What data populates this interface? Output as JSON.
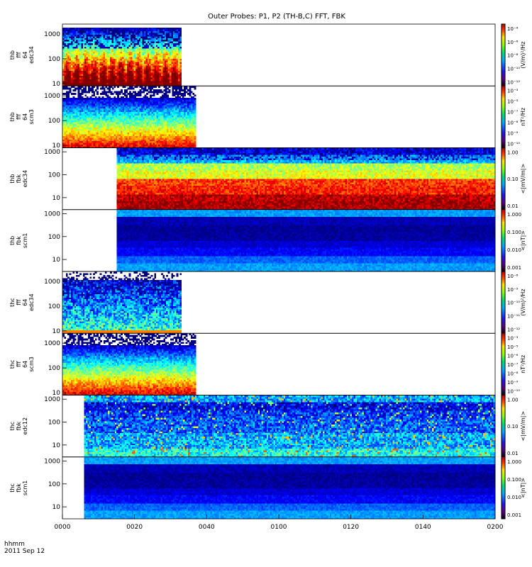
{
  "title": "Outer Probes: P1, P2 (TH-B,C) FFT, FBK",
  "time_axis": {
    "ticks": [
      "0000",
      "0020",
      "0040",
      "0100",
      "0120",
      "0140",
      "0200"
    ],
    "label_lines": [
      "hhmm",
      "2011 Sep 12"
    ]
  },
  "chart_data": [
    {
      "type": "heatmap",
      "panel_label": [
        "thb",
        "fff",
        "64",
        "edc34"
      ],
      "y_ticks": [
        "10",
        "100",
        "1000"
      ],
      "y_scale": "log",
      "y_range": [
        8,
        2500
      ],
      "colorbar": {
        "label": "(V/m)²/Hz",
        "ticks": [
          "10⁻⁴",
          "10⁻⁶",
          "10⁻⁸",
          "10⁻¹⁰",
          "10⁻¹²"
        ]
      },
      "data_extent_hhmm": [
        "0000",
        "0033"
      ],
      "style": "fff_e"
    },
    {
      "type": "heatmap",
      "panel_label": [
        "thb",
        "fff",
        "64",
        "scm3"
      ],
      "y_ticks": [
        "10",
        "100",
        "1000"
      ],
      "y_scale": "log",
      "y_range": [
        8,
        2500
      ],
      "colorbar": {
        "label": "nT²/Hz",
        "ticks": [
          "10⁻³",
          "10⁻⁵",
          "10⁻⁷",
          "10⁻⁸",
          "10⁻⁹",
          "10⁻¹⁰"
        ]
      },
      "data_extent_hhmm": [
        "0000",
        "0037"
      ],
      "style": "fff_b"
    },
    {
      "type": "heatmap",
      "panel_label": [
        "thb",
        "fbk",
        "edc34"
      ],
      "y_ticks": [
        "10",
        "100",
        "1000"
      ],
      "y_scale": "log",
      "y_range": [
        3,
        1500
      ],
      "colorbar": {
        "label": "<|mV/m|>",
        "ticks": [
          "1.00",
          "0.10",
          "0.01"
        ]
      },
      "data_extent_hhmm": [
        "0015",
        "0200"
      ],
      "style": "fbk_e1"
    },
    {
      "type": "heatmap",
      "panel_label": [
        "thb",
        "fbk",
        "scm1"
      ],
      "y_ticks": [
        "10",
        "100",
        "1000"
      ],
      "y_scale": "log",
      "y_range": [
        3,
        1500
      ],
      "colorbar": {
        "label": "<|nT|>",
        "ticks": [
          "1.000",
          "0.100",
          "0.010",
          "0.001"
        ]
      },
      "data_extent_hhmm": [
        "0015",
        "0200"
      ],
      "style": "fbk_b"
    },
    {
      "type": "heatmap",
      "panel_label": [
        "thc",
        "fff",
        "64",
        "edc34"
      ],
      "y_ticks": [
        "10",
        "100",
        "1000"
      ],
      "y_scale": "log",
      "y_range": [
        8,
        2500
      ],
      "colorbar": {
        "label": "(V/m)²/Hz",
        "ticks": [
          "10⁻⁸",
          "10⁻⁹",
          "10⁻¹⁰",
          "10⁻¹¹",
          "10⁻¹²"
        ]
      },
      "data_extent_hhmm": [
        "0000",
        "0033"
      ],
      "style": "fff_e2"
    },
    {
      "type": "heatmap",
      "panel_label": [
        "thc",
        "fff",
        "64",
        "scm3"
      ],
      "y_ticks": [
        "10",
        "100",
        "1000"
      ],
      "y_scale": "log",
      "y_range": [
        8,
        2500
      ],
      "colorbar": {
        "label": "nT²/Hz",
        "ticks": [
          "10⁻³",
          "10⁻⁵",
          "10⁻⁶",
          "10⁻⁷",
          "10⁻⁸",
          "10⁻⁹",
          "10⁻¹⁰"
        ]
      },
      "data_extent_hhmm": [
        "0000",
        "0037"
      ],
      "style": "fff_b"
    },
    {
      "type": "heatmap",
      "panel_label": [
        "thc",
        "fbk",
        "edc12"
      ],
      "y_ticks": [
        "10",
        "100",
        "1000"
      ],
      "y_scale": "log",
      "y_range": [
        3,
        1500
      ],
      "colorbar": {
        "label": "<|mV/m|>",
        "ticks": [
          "1.00",
          "0.10",
          "0.01"
        ]
      },
      "data_extent_hhmm": [
        "0006",
        "0200"
      ],
      "style": "fbk_e2"
    },
    {
      "type": "heatmap",
      "panel_label": [
        "thc",
        "fbk",
        "scm1"
      ],
      "y_ticks": [
        "10",
        "100",
        "1000"
      ],
      "y_scale": "log",
      "y_range": [
        3,
        1500
      ],
      "colorbar": {
        "label": "<|nT|>",
        "ticks": [
          "1.000",
          "0.100",
          "0.010",
          "0.001"
        ]
      },
      "data_extent_hhmm": [
        "0006",
        "0200"
      ],
      "style": "fbk_b"
    }
  ]
}
